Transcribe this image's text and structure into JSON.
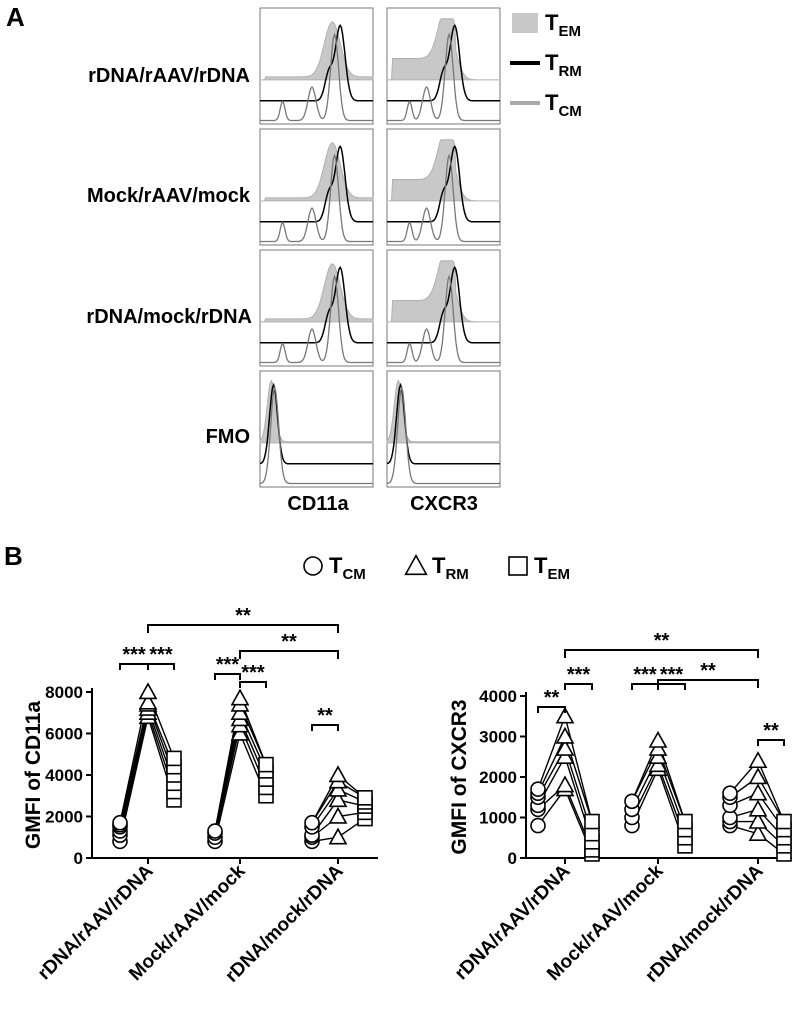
{
  "panel_a": {
    "panel_label": "A",
    "row_labels": [
      "rDNA/rAAV/rDNA",
      "Mock/rAAV/mock",
      "rDNA/mock/rDNA",
      "FMO"
    ],
    "column_labels": [
      "CD11a",
      "CXCR3"
    ],
    "legend": [
      {
        "main": "T",
        "sub": "EM",
        "style": "filled",
        "color": "#c8c8c8"
      },
      {
        "main": "T",
        "sub": "RM",
        "style": "line",
        "color": "#000000"
      },
      {
        "main": "T",
        "sub": "CM",
        "style": "line",
        "color": "#a8a8a8"
      }
    ]
  },
  "panel_b": {
    "panel_label": "B",
    "legend": [
      {
        "main": "T",
        "sub": "CM",
        "marker": "circle"
      },
      {
        "main": "T",
        "sub": "RM",
        "marker": "triangle"
      },
      {
        "main": "T",
        "sub": "EM",
        "marker": "square"
      }
    ]
  },
  "chart_data": [
    {
      "type": "scatter",
      "ylabel": "GMFI of CD11a",
      "ylim": [
        0,
        8000
      ],
      "yticks": [
        "0",
        "2000",
        "4000",
        "6000",
        "8000"
      ],
      "groups": [
        "rDNA/rAAV/rDNA",
        "Mock/rAAV/mock",
        "rDNA/mock/rDNA"
      ],
      "series": [
        {
          "name": "TCM",
          "marker": "circle",
          "values": [
            [
              800,
              1100,
              1300,
              1500,
              1600,
              1700
            ],
            [
              800,
              1000,
              1200,
              1300
            ],
            [
              800,
              1000,
              1100,
              1500,
              1700
            ]
          ]
        },
        {
          "name": "TRM",
          "marker": "triangle",
          "values": [
            [
              6800,
              7000,
              7200,
              7400,
              7500,
              8000
            ],
            [
              6000,
              6400,
              6700,
              7000,
              7400,
              7700
            ],
            [
              1000,
              2000,
              2800,
              3300,
              3700,
              4000
            ]
          ]
        },
        {
          "name": "TEM",
          "marker": "square",
          "values": [
            [
              2800,
              3200,
              3600,
              4000,
              4400,
              4800
            ],
            [
              3000,
              3400,
              3800,
              4200,
              4500
            ],
            [
              1900,
              2200,
              2500,
              2700,
              2900
            ]
          ]
        }
      ],
      "pairings": [
        [
          [
            1,
            0
          ],
          [
            1,
            1
          ],
          [
            2,
            2
          ],
          [
            3,
            3
          ],
          [
            4,
            4
          ],
          [
            5,
            5
          ]
        ],
        [
          [
            0,
            0
          ],
          [
            1,
            1
          ],
          [
            2,
            2
          ],
          [
            3,
            3
          ],
          [
            3,
            4
          ],
          [
            2,
            5
          ]
        ],
        [
          [
            0,
            0
          ],
          [
            1,
            1
          ],
          [
            2,
            2
          ],
          [
            3,
            3
          ],
          [
            4,
            4
          ],
          [
            4,
            5
          ]
        ]
      ],
      "significance": [
        {
          "from": 0,
          "to": 1,
          "group": 0,
          "label": "***"
        },
        {
          "from": 1,
          "to": 2,
          "group": 0,
          "label": "***"
        },
        {
          "from": 0,
          "to": 1,
          "group": 1,
          "label": "***"
        },
        {
          "from": 1,
          "to": 2,
          "group": 1,
          "label": "***"
        },
        {
          "from": 0,
          "to": 1,
          "group": 2,
          "label": "**"
        },
        {
          "between": [
            0,
            2
          ],
          "series": 1,
          "level": 2,
          "label": "**"
        },
        {
          "between": [
            1,
            2
          ],
          "series": 1,
          "level": 1,
          "label": "**"
        }
      ]
    },
    {
      "type": "scatter",
      "ylabel": "GMFI of CXCR3",
      "ylim": [
        0,
        4000
      ],
      "yticks": [
        "0",
        "1000",
        "2000",
        "3000",
        "4000"
      ],
      "groups": [
        "rDNA/rAAV/rDNA",
        "Mock/rAAV/mock",
        "rDNA/mock/rDNA"
      ],
      "series": [
        {
          "name": "TCM",
          "marker": "circle",
          "values": [
            [
              800,
              1200,
              1300,
              1500,
              1600,
              1700
            ],
            [
              800,
              1000,
              1200,
              1400
            ],
            [
              800,
              900,
              1000,
              1300,
              1500,
              1600
            ]
          ]
        },
        {
          "name": "TRM",
          "marker": "triangle",
          "values": [
            [
              1700,
              1800,
              2500,
              2700,
              3000,
              3500
            ],
            [
              2200,
              2300,
              2500,
              2700,
              2900
            ],
            [
              600,
              900,
              1200,
              1600,
              2000,
              2400
            ]
          ]
        },
        {
          "name": "TEM",
          "marker": "square",
          "values": [
            [
              100,
              200,
              400,
              600,
              900
            ],
            [
              300,
              500,
              700,
              900
            ],
            [
              100,
              300,
              500,
              700,
              900
            ]
          ]
        }
      ],
      "pairings": [
        [
          [
            0,
            0
          ],
          [
            1,
            1
          ],
          [
            2,
            2
          ],
          [
            3,
            3
          ],
          [
            4,
            4
          ],
          [
            5,
            4
          ]
        ],
        [
          [
            0,
            0
          ],
          [
            1,
            1
          ],
          [
            2,
            2
          ],
          [
            3,
            3
          ],
          [
            3,
            4
          ]
        ],
        [
          [
            0,
            0
          ],
          [
            1,
            1
          ],
          [
            2,
            2
          ],
          [
            3,
            3
          ],
          [
            4,
            4
          ],
          [
            5,
            4
          ]
        ]
      ],
      "significance": [
        {
          "from": 0,
          "to": 1,
          "group": 0,
          "label": "**"
        },
        {
          "from": 1,
          "to": 2,
          "group": 0,
          "label": "***"
        },
        {
          "from": 0,
          "to": 1,
          "group": 1,
          "label": "***"
        },
        {
          "from": 1,
          "to": 2,
          "group": 1,
          "label": "***"
        },
        {
          "from": 1,
          "to": 2,
          "group": 2,
          "label": "**"
        },
        {
          "between": [
            0,
            2
          ],
          "series": 1,
          "level": 2,
          "label": "**"
        },
        {
          "between": [
            1,
            2
          ],
          "series": 1,
          "level": 1,
          "label": "**"
        }
      ]
    }
  ]
}
